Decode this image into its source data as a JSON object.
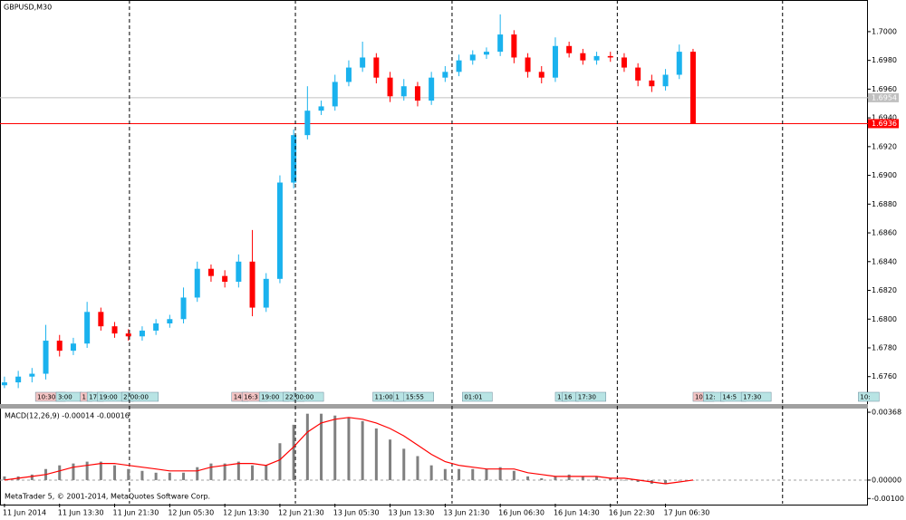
{
  "chart_data": [
    {
      "type": "candlestick",
      "title": "GBPUSD,M30",
      "x": [
        0,
        4,
        8,
        12,
        16,
        20,
        24,
        28,
        32,
        36,
        40,
        44,
        48,
        52,
        56,
        60,
        64,
        68,
        72,
        76,
        80,
        84,
        88,
        92,
        96,
        100,
        104,
        108,
        112,
        116,
        120,
        124,
        128,
        132,
        136,
        140,
        144,
        148,
        152,
        156,
        160,
        164,
        168,
        172,
        176,
        180,
        184,
        188,
        192,
        196,
        200
      ],
      "open": [
        1.6754,
        1.6756,
        1.676,
        1.6762,
        1.6785,
        1.6778,
        1.6783,
        1.6805,
        1.6795,
        1.679,
        1.6788,
        1.6792,
        1.6797,
        1.68,
        1.6815,
        1.6835,
        1.683,
        1.6826,
        1.684,
        1.6808,
        1.6828,
        1.6895,
        1.6928,
        1.6945,
        1.6948,
        1.6965,
        1.6975,
        1.6982,
        1.6968,
        1.6955,
        1.6962,
        1.6952,
        1.6968,
        1.6972,
        1.698,
        1.6984,
        1.6986,
        1.6998,
        1.6982,
        1.6972,
        1.6968,
        1.699,
        1.6985,
        1.698,
        1.6983,
        1.6982,
        1.6975,
        1.6966,
        1.6962,
        1.697,
        1.6986
      ],
      "high": [
        1.676,
        1.6764,
        1.6766,
        1.6796,
        1.6789,
        1.6787,
        1.6812,
        1.6808,
        1.6798,
        1.6793,
        1.6795,
        1.68,
        1.6803,
        1.6822,
        1.684,
        1.6838,
        1.6834,
        1.6845,
        1.6862,
        1.6832,
        1.69,
        1.6932,
        1.6962,
        1.6952,
        1.697,
        1.698,
        1.6993,
        1.6985,
        1.6972,
        1.6967,
        1.6965,
        1.6972,
        1.6976,
        1.6984,
        1.6987,
        1.6989,
        1.7012,
        1.7001,
        1.6985,
        1.6976,
        1.6996,
        1.6993,
        1.6988,
        1.6986,
        1.6986,
        1.6985,
        1.6978,
        1.697,
        1.6974,
        1.6991,
        1.6988
      ],
      "low": [
        1.6752,
        1.6752,
        1.6756,
        1.6758,
        1.6774,
        1.6775,
        1.678,
        1.6792,
        1.6787,
        1.6785,
        1.6785,
        1.6789,
        1.6794,
        1.6797,
        1.6812,
        1.6826,
        1.6822,
        1.6822,
        1.6802,
        1.6805,
        1.6825,
        1.6891,
        1.6925,
        1.6942,
        1.6945,
        1.6962,
        1.6972,
        1.6964,
        1.6951,
        1.6952,
        1.6948,
        1.6949,
        1.6965,
        1.6969,
        1.6977,
        1.6981,
        1.6983,
        1.6978,
        1.6968,
        1.6964,
        1.6965,
        1.6982,
        1.6977,
        1.6977,
        1.6979,
        1.6972,
        1.6962,
        1.6958,
        1.6959,
        1.6967,
        1.6936
      ],
      "close": [
        1.6756,
        1.676,
        1.6762,
        1.6785,
        1.6778,
        1.6783,
        1.6805,
        1.6795,
        1.679,
        1.6788,
        1.6792,
        1.6797,
        1.68,
        1.6815,
        1.6835,
        1.683,
        1.6826,
        1.684,
        1.6808,
        1.6828,
        1.6895,
        1.6928,
        1.6945,
        1.6948,
        1.6965,
        1.6975,
        1.6982,
        1.6968,
        1.6955,
        1.6962,
        1.6952,
        1.6968,
        1.6972,
        1.698,
        1.6984,
        1.6986,
        1.6998,
        1.6982,
        1.6972,
        1.6968,
        1.699,
        1.6985,
        1.698,
        1.6983,
        1.6982,
        1.6975,
        1.6966,
        1.6962,
        1.697,
        1.6986,
        1.6936
      ],
      "up_color": "#1ab2ee",
      "down_color": "#ff0000",
      "xlim": [
        -1.3,
        250.8
      ],
      "ylim": [
        1.6751,
        1.7022
      ],
      "yticks": [
        {
          "value": 1.676,
          "label": "1.6760"
        },
        {
          "value": 1.678,
          "label": "1.6780"
        },
        {
          "value": 1.68,
          "label": "1.6800"
        },
        {
          "value": 1.682,
          "label": "1.6820"
        },
        {
          "value": 1.684,
          "label": "1.6840"
        },
        {
          "value": 1.686,
          "label": "1.6860"
        },
        {
          "value": 1.688,
          "label": "1.6880"
        },
        {
          "value": 1.69,
          "label": "1.6900"
        },
        {
          "value": 1.692,
          "label": "1.6920"
        },
        {
          "value": 1.694,
          "label": "1.6940"
        },
        {
          "value": 1.696,
          "label": "1.6960"
        },
        {
          "value": 1.698,
          "label": "1.6980"
        },
        {
          "value": 1.7,
          "label": "1.7000"
        }
      ],
      "price_lines": [
        {
          "value": 1.6954,
          "color": "#c0c0c0"
        },
        {
          "value": 1.6936,
          "color": "#ff0000"
        }
      ],
      "separators": [
        36.3,
        84.5,
        130,
        178,
        226
      ],
      "events": [
        {
          "x": 9,
          "label": "10:30",
          "color": "#f4c4c4"
        },
        {
          "x": 15,
          "label": "3:00",
          "color": "#b8e4e4"
        },
        {
          "x": 22,
          "label": "1",
          "color": "#f4c4c4"
        },
        {
          "x": 24,
          "label": "17",
          "color": "#b8e4e4"
        },
        {
          "x": 27,
          "label": "19:00",
          "color": "#b8e4e4"
        },
        {
          "x": 34,
          "label": "2",
          "color": "#b8e4e4"
        },
        {
          "x": 36,
          "label": "00:00",
          "color": "#b8e4e4"
        },
        {
          "x": 66,
          "label": "14",
          "color": "#f4c4c4"
        },
        {
          "x": 69,
          "label": "16:3",
          "color": "#f4c4c4"
        },
        {
          "x": 74,
          "label": "19:00",
          "color": "#b8e4e4"
        },
        {
          "x": 81,
          "label": "22:",
          "color": "#b8e4e4"
        },
        {
          "x": 84,
          "label": "00:00",
          "color": "#b8e4e4"
        },
        {
          "x": 107,
          "label": "11:00",
          "color": "#b8e4e4"
        },
        {
          "x": 113,
          "label": "1",
          "color": "#b8e4e4"
        },
        {
          "x": 116,
          "label": "15:55",
          "color": "#b8e4e4"
        },
        {
          "x": 133,
          "label": "01:01",
          "color": "#b8e4e4"
        },
        {
          "x": 160,
          "label": "1",
          "color": "#b8e4e4"
        },
        {
          "x": 162,
          "label": "16",
          "color": "#b8e4e4"
        },
        {
          "x": 166,
          "label": "17:30",
          "color": "#b8e4e4"
        },
        {
          "x": 200,
          "label": "10:",
          "color": "#f4c4c4"
        },
        {
          "x": 203,
          "label": "12:",
          "color": "#b8e4e4"
        },
        {
          "x": 208,
          "label": "14:5",
          "color": "#b8e4e4"
        },
        {
          "x": 214,
          "label": "17:30",
          "color": "#b8e4e4"
        },
        {
          "x": 248,
          "label": "10:",
          "color": "#b8e4e4"
        }
      ]
    },
    {
      "type": "macd",
      "title": "MACD(12,26,9) -0.00014 -0.00016",
      "copyright": "MetaTrader 5, © 2001-2014, MetaQuotes Software Corp.",
      "x": [
        0,
        4,
        8,
        12,
        16,
        20,
        24,
        28,
        32,
        36,
        40,
        44,
        48,
        52,
        56,
        60,
        64,
        68,
        72,
        76,
        80,
        84,
        88,
        92,
        96,
        100,
        104,
        108,
        112,
        116,
        120,
        124,
        128,
        132,
        136,
        140,
        144,
        148,
        152,
        156,
        160,
        164,
        168,
        172,
        176,
        180,
        184,
        188,
        192,
        196,
        200
      ],
      "series": [
        {
          "name": "MACD",
          "color": "#808080",
          "values": [
            0.0002,
            0.0002,
            0.0003,
            0.0006,
            0.0008,
            0.0009,
            0.001,
            0.001,
            0.0008,
            0.0006,
            0.0005,
            0.0004,
            0.0004,
            0.0004,
            0.0007,
            0.0009,
            0.0009,
            0.001,
            0.0008,
            0.0008,
            0.002,
            0.003,
            0.0036,
            0.0036,
            0.0035,
            0.0034,
            0.0032,
            0.0028,
            0.0022,
            0.0017,
            0.0013,
            0.0008,
            0.0006,
            0.0006,
            0.0006,
            0.0006,
            0.0007,
            0.0005,
            0.0002,
            0.0001,
            0.0002,
            0.0003,
            0.0002,
            0.0002,
            0.0001,
            0,
            -0.0001,
            -0.0002,
            -0.0002,
            0,
            0
          ]
        },
        {
          "name": "Signal",
          "color": "#ff0000",
          "values": [
            0,
            0.0001,
            0.0002,
            0.0003,
            0.0005,
            0.0007,
            0.0008,
            0.0009,
            0.0009,
            0.0008,
            0.0007,
            0.0006,
            0.0005,
            0.0005,
            0.0005,
            0.0007,
            0.0008,
            0.0009,
            0.0009,
            0.0008,
            0.0011,
            0.0018,
            0.0026,
            0.0031,
            0.0033,
            0.0034,
            0.0033,
            0.0031,
            0.0028,
            0.0024,
            0.0019,
            0.0014,
            0.001,
            0.0008,
            0.0007,
            0.0006,
            0.0006,
            0.0006,
            0.0004,
            0.0003,
            0.0002,
            0.0002,
            0.0002,
            0.0002,
            0.0001,
            0.0001,
            0,
            -0.0001,
            -0.0002,
            -0.0001,
            0
          ]
        }
      ],
      "xlim": [
        -1.3,
        250.8
      ],
      "ylim": [
        -0.00128,
        0.00383
      ],
      "yticks": [
        0.00368,
        {
          "value": 0,
          "label": "0.00000"
        },
        {
          "value": -0.001,
          "label": "-0.00100"
        }
      ],
      "xticks": [
        {
          "value": 0,
          "label": "11 Jun 2014"
        },
        {
          "value": 16,
          "label": "11 Jun 13:30"
        },
        {
          "value": 32,
          "label": "11 Jun 21:30"
        },
        {
          "value": 48,
          "label": "12 Jun 05:30"
        },
        {
          "value": 64,
          "label": "12 Jun 13:30"
        },
        {
          "value": 80,
          "label": "12 Jun 21:30"
        },
        {
          "value": 96,
          "label": "13 Jun 05:30"
        },
        {
          "value": 112,
          "label": "13 Jun 13:30"
        },
        {
          "value": 128,
          "label": "13 Jun 21:30"
        },
        {
          "value": 144,
          "label": "16 Jun 06:30"
        },
        {
          "value": 160,
          "label": "16 Jun 14:30"
        },
        {
          "value": 176,
          "label": "16 Jun 22:30"
        },
        {
          "value": 192,
          "label": "17 Jun 06:30"
        }
      ]
    }
  ]
}
